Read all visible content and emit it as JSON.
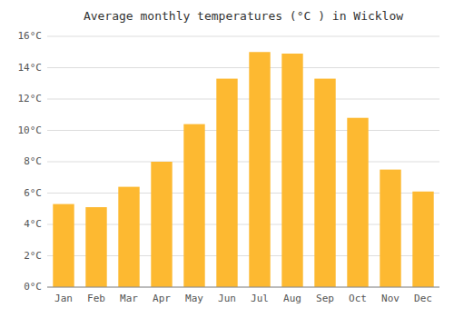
{
  "chart_data": {
    "type": "bar",
    "title": "Average monthly temperatures (°C ) in Wicklow",
    "categories": [
      "Jan",
      "Feb",
      "Mar",
      "Apr",
      "May",
      "Jun",
      "Jul",
      "Aug",
      "Sep",
      "Oct",
      "Nov",
      "Dec"
    ],
    "values": [
      5.3,
      5.1,
      6.4,
      8.0,
      10.4,
      13.3,
      15.0,
      14.9,
      13.3,
      10.8,
      7.5,
      6.1
    ],
    "color": "#FDB931",
    "ylim": [
      0,
      16
    ],
    "yticks": [
      {
        "value": 0,
        "label": "0°C"
      },
      {
        "value": 2,
        "label": "2°C"
      },
      {
        "value": 4,
        "label": "4°C"
      },
      {
        "value": 6,
        "label": "6°C"
      },
      {
        "value": 8,
        "label": "8°C"
      },
      {
        "value": 10,
        "label": "10°C"
      },
      {
        "value": 12,
        "label": "12°C"
      },
      {
        "value": 14,
        "label": "14°C"
      },
      {
        "value": 16,
        "label": "16°C"
      }
    ],
    "grid": true
  }
}
